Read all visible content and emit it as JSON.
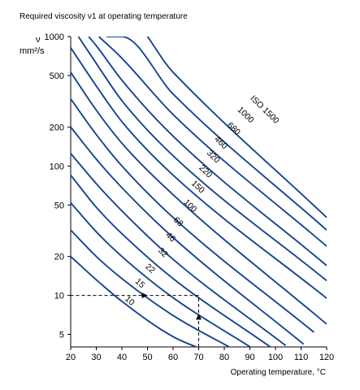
{
  "chart_data": {
    "type": "line",
    "title": "Required viscosity ν1 at operating temperature",
    "ylabel": "ν",
    "yunit": "mm²/s",
    "xlabel": "Operating temperature, °C",
    "xlim": [
      20,
      120
    ],
    "ylim": [
      4,
      1000
    ],
    "yscale": "log",
    "xticks": [
      20,
      30,
      40,
      50,
      60,
      70,
      80,
      90,
      100,
      110,
      120
    ],
    "yticks": [
      5,
      10,
      20,
      50,
      100,
      200,
      500,
      1000
    ],
    "grid": false,
    "curve_color": "#17458f",
    "series": [
      {
        "name": "10",
        "x": [
          20,
          30,
          40,
          60,
          75
        ],
        "y": [
          20,
          13.2,
          9.0,
          4.8,
          3.6
        ]
      },
      {
        "name": "15",
        "x": [
          20,
          30,
          40,
          60,
          84
        ],
        "y": [
          32,
          20,
          13.5,
          7.0,
          3.8
        ]
      },
      {
        "name": "22",
        "x": [
          20,
          30,
          40,
          60,
          91
        ],
        "y": [
          52,
          31,
          20,
          9.6,
          3.9
        ]
      },
      {
        "name": "32",
        "x": [
          20,
          30,
          40,
          60,
          98
        ],
        "y": [
          85,
          48,
          30,
          13.5,
          4.0
        ]
      },
      {
        "name": "46",
        "x": [
          20,
          30,
          40,
          60,
          104
        ],
        "y": [
          125,
          73,
          45,
          19,
          4.1
        ]
      },
      {
        "name": "68",
        "x": [
          20,
          30,
          40,
          60,
          111
        ],
        "y": [
          200,
          113,
          68,
          28,
          4.2
        ]
      },
      {
        "name": "100",
        "x": [
          20,
          30,
          40,
          60,
          115
        ],
        "y": [
          330,
          175,
          100,
          40,
          5.2
        ]
      },
      {
        "name": "150",
        "x": [
          20,
          30,
          40,
          60,
          120
        ],
        "y": [
          530,
          270,
          150,
          60,
          6.0
        ]
      },
      {
        "name": "220",
        "x": [
          20,
          30,
          40,
          60,
          120
        ],
        "y": [
          820,
          415,
          220,
          85,
          9.5
        ]
      },
      {
        "name": "320",
        "x": [
          23,
          30,
          40,
          60,
          120
        ],
        "y": [
          1000,
          620,
          320,
          120,
          13
        ]
      },
      {
        "name": "460",
        "x": [
          27,
          30,
          40,
          60,
          120
        ],
        "y": [
          1000,
          850,
          460,
          170,
          17
        ]
      },
      {
        "name": "680",
        "x": [
          31,
          40,
          60,
          120
        ],
        "y": [
          1000,
          680,
          250,
          24
        ]
      },
      {
        "name": "1000",
        "x": [
          34,
          40,
          60,
          120
        ],
        "y": [
          1000,
          1000,
          360,
          32
        ]
      },
      {
        "name": "ISO 1500",
        "x": [
          38,
          40,
          60,
          120
        ],
        "y": [
          1000,
          1500,
          530,
          40
        ]
      }
    ],
    "curve_labels": [
      {
        "text": "10",
        "x": 41,
        "y": 9.3,
        "angle": 42
      },
      {
        "text": "15",
        "x": 45,
        "y": 12.7,
        "angle": 42
      },
      {
        "text": "22",
        "x": 49,
        "y": 16.5,
        "angle": 42
      },
      {
        "text": "32",
        "x": 54,
        "y": 22,
        "angle": 44
      },
      {
        "text": "46",
        "x": 57,
        "y": 29,
        "angle": 44
      },
      {
        "text": "68",
        "x": 60,
        "y": 38,
        "angle": 44
      },
      {
        "text": "100",
        "x": 64,
        "y": 52,
        "angle": 44
      },
      {
        "text": "150",
        "x": 67,
        "y": 73,
        "angle": 44
      },
      {
        "text": "220",
        "x": 70,
        "y": 96,
        "angle": 44
      },
      {
        "text": "320",
        "x": 73,
        "y": 125,
        "angle": 44
      },
      {
        "text": "460",
        "x": 76,
        "y": 160,
        "angle": 44
      },
      {
        "text": "680",
        "x": 81,
        "y": 205,
        "angle": 44
      },
      {
        "text": "1000",
        "x": 85,
        "y": 270,
        "angle": 44
      },
      {
        "text": "ISO 1500",
        "x": 90,
        "y": 330,
        "angle": 44
      }
    ],
    "example": {
      "temperature": 70,
      "viscosity": 10,
      "arrow_at_curve": 50
    }
  }
}
